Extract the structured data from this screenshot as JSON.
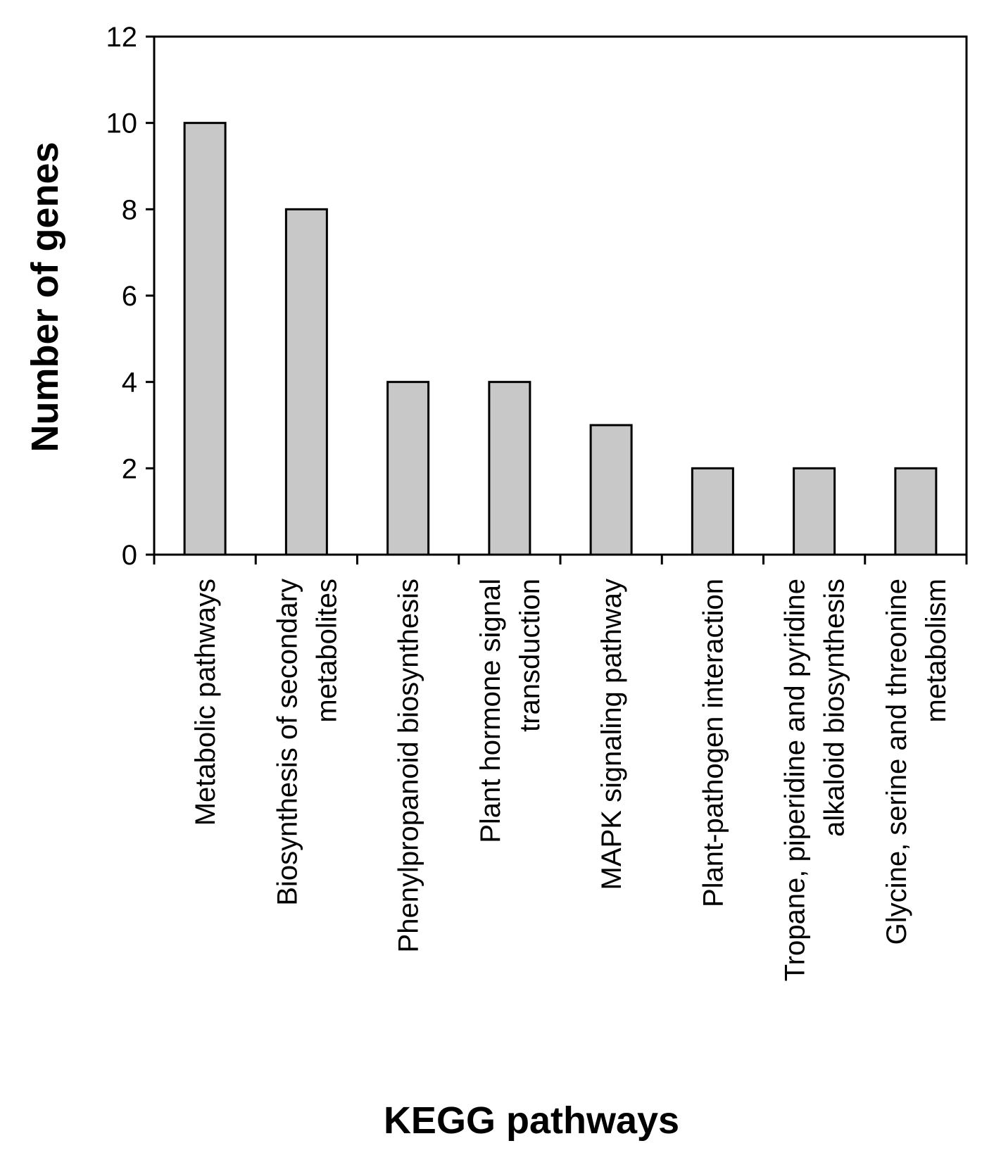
{
  "chart_data": {
    "type": "bar",
    "xlabel": "KEGG pathways",
    "ylabel": "Number of genes",
    "ylim": [
      0,
      12
    ],
    "yticks": [
      "0",
      "2",
      "4",
      "6",
      "8",
      "10",
      "12"
    ],
    "grid": false,
    "legend": "none",
    "bar_color": "#c8c8c8",
    "categories": [
      [
        "Metabolic pathways"
      ],
      [
        "Biosynthesis of secondary",
        "metabolites"
      ],
      [
        "Phenylpropanoid biosynthesis"
      ],
      [
        "Plant hormone signal",
        "transduction"
      ],
      [
        "MAPK signaling pathway"
      ],
      [
        "Plant-pathogen interaction"
      ],
      [
        "Tropane, piperidine and pyridine",
        "alkaloid biosynthesis"
      ],
      [
        "Glycine, serine and threonine",
        "metabolism"
      ]
    ],
    "values": [
      10,
      8,
      4,
      4,
      3,
      2,
      2,
      2
    ]
  }
}
